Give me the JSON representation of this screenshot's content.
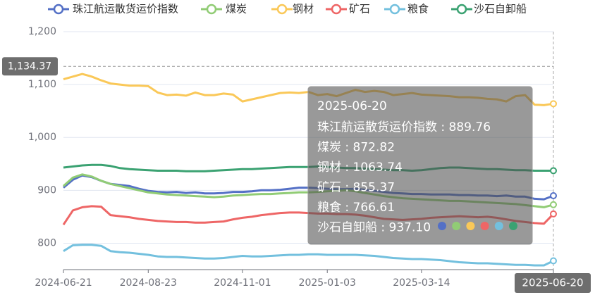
{
  "chart_data": {
    "type": "line",
    "categories": [
      "2024-06-21",
      null,
      null,
      null,
      null,
      null,
      null,
      null,
      null,
      "2024-08-23",
      null,
      null,
      null,
      null,
      null,
      null,
      null,
      null,
      null,
      "2024-11-01",
      null,
      null,
      null,
      null,
      null,
      null,
      null,
      null,
      "2025-01-03",
      null,
      null,
      null,
      null,
      null,
      null,
      null,
      null,
      null,
      "2025-03-14",
      null,
      null,
      null,
      null,
      null,
      null,
      null,
      null,
      null,
      null,
      null,
      null,
      null,
      "2025-06-20"
    ],
    "series": [
      {
        "name": "珠江航运散货运价指数",
        "color": "#5470c6",
        "values": [
          905,
          920,
          928,
          925,
          918,
          912,
          910,
          908,
          903,
          899,
          897,
          896,
          897,
          895,
          896,
          894,
          894,
          895,
          897,
          897,
          898,
          900,
          900,
          901,
          903,
          905,
          905,
          904,
          903,
          902,
          902,
          903,
          901,
          899,
          897,
          895,
          894,
          893,
          893,
          892,
          892,
          892,
          891,
          891,
          890,
          890,
          889,
          890,
          888,
          888,
          884,
          883,
          889.76
        ]
      },
      {
        "name": "煤炭",
        "color": "#91cc75",
        "values": [
          908,
          924,
          930,
          926,
          918,
          912,
          908,
          904,
          900,
          896,
          894,
          892,
          891,
          890,
          889,
          888,
          887,
          888,
          890,
          891,
          892,
          893,
          893,
          894,
          895,
          896,
          896,
          897,
          898,
          899,
          900,
          898,
          895,
          892,
          889,
          887,
          885,
          884,
          883,
          882,
          881,
          880,
          880,
          879,
          878,
          877,
          876,
          875,
          874,
          872,
          870,
          868,
          872.82
        ]
      },
      {
        "name": "钢材",
        "color": "#fac858",
        "values": [
          1110,
          1115,
          1120,
          1115,
          1108,
          1102,
          1100,
          1098,
          1098,
          1097,
          1085,
          1080,
          1081,
          1079,
          1085,
          1080,
          1080,
          1083,
          1081,
          1068,
          1072,
          1076,
          1080,
          1084,
          1085,
          1084,
          1086,
          1080,
          1082,
          1078,
          1084,
          1090,
          1086,
          1088,
          1086,
          1080,
          1082,
          1084,
          1081,
          1080,
          1079,
          1078,
          1076,
          1076,
          1075,
          1073,
          1072,
          1068,
          1078,
          1080,
          1062,
          1061,
          1063.74
        ]
      },
      {
        "name": "矿石",
        "color": "#ee6666",
        "values": [
          835,
          862,
          868,
          870,
          869,
          853,
          851,
          849,
          846,
          844,
          842,
          841,
          840,
          840,
          839,
          839,
          840,
          841,
          845,
          848,
          850,
          853,
          855,
          857,
          858,
          858,
          857,
          856,
          856,
          855,
          855,
          854,
          852,
          849,
          846,
          845,
          844,
          845,
          846,
          848,
          849,
          850,
          851,
          850,
          849,
          850,
          848,
          845,
          842,
          840,
          838,
          837,
          855.37
        ]
      },
      {
        "name": "粮食",
        "color": "#73c0de",
        "values": [
          785,
          796,
          797,
          797,
          795,
          785,
          783,
          782,
          780,
          778,
          775,
          774,
          774,
          773,
          772,
          771,
          771,
          772,
          774,
          776,
          775,
          775,
          776,
          777,
          778,
          778,
          779,
          779,
          778,
          778,
          778,
          778,
          777,
          776,
          774,
          772,
          771,
          770,
          770,
          769,
          768,
          766,
          764,
          763,
          762,
          762,
          761,
          760,
          759,
          759,
          758,
          758,
          766.61
        ]
      },
      {
        "name": "沙石自卸船",
        "color": "#3ba272",
        "values": [
          943,
          945,
          947,
          948,
          948,
          946,
          942,
          940,
          939,
          938,
          937,
          937,
          937,
          936,
          936,
          936,
          937,
          938,
          939,
          940,
          940,
          941,
          942,
          943,
          944,
          944,
          944,
          945,
          944,
          943,
          942,
          942,
          941,
          940,
          939,
          938,
          938,
          937,
          938,
          940,
          942,
          943,
          943,
          942,
          941,
          940,
          940,
          939,
          938,
          938,
          937,
          937,
          937.1
        ],
        "value_labels": [
          null,
          null,
          null,
          null,
          null,
          null,
          null,
          null,
          null,
          null,
          null,
          null,
          null,
          null,
          null,
          null,
          null,
          null,
          null,
          null,
          null,
          null,
          null,
          null,
          null,
          null,
          null,
          null,
          null,
          null,
          null,
          null,
          null,
          null,
          null,
          null,
          null,
          null,
          null,
          null,
          null,
          null,
          null,
          null,
          null,
          null,
          null,
          null,
          null,
          null,
          null,
          null,
          "937.10"
        ]
      }
    ],
    "ylim": [
      750,
      1200
    ],
    "yticks": [
      800,
      900,
      {
        "value": 1000,
        "label": "1,000"
      },
      {
        "value": 1100,
        "label": "1,100"
      },
      {
        "value": 1200,
        "label": "1,200"
      }
    ],
    "grid": true,
    "axis_pointer": {
      "value": 1134.37,
      "label": "1,134.37"
    },
    "tooltip_separator": " : "
  }
}
